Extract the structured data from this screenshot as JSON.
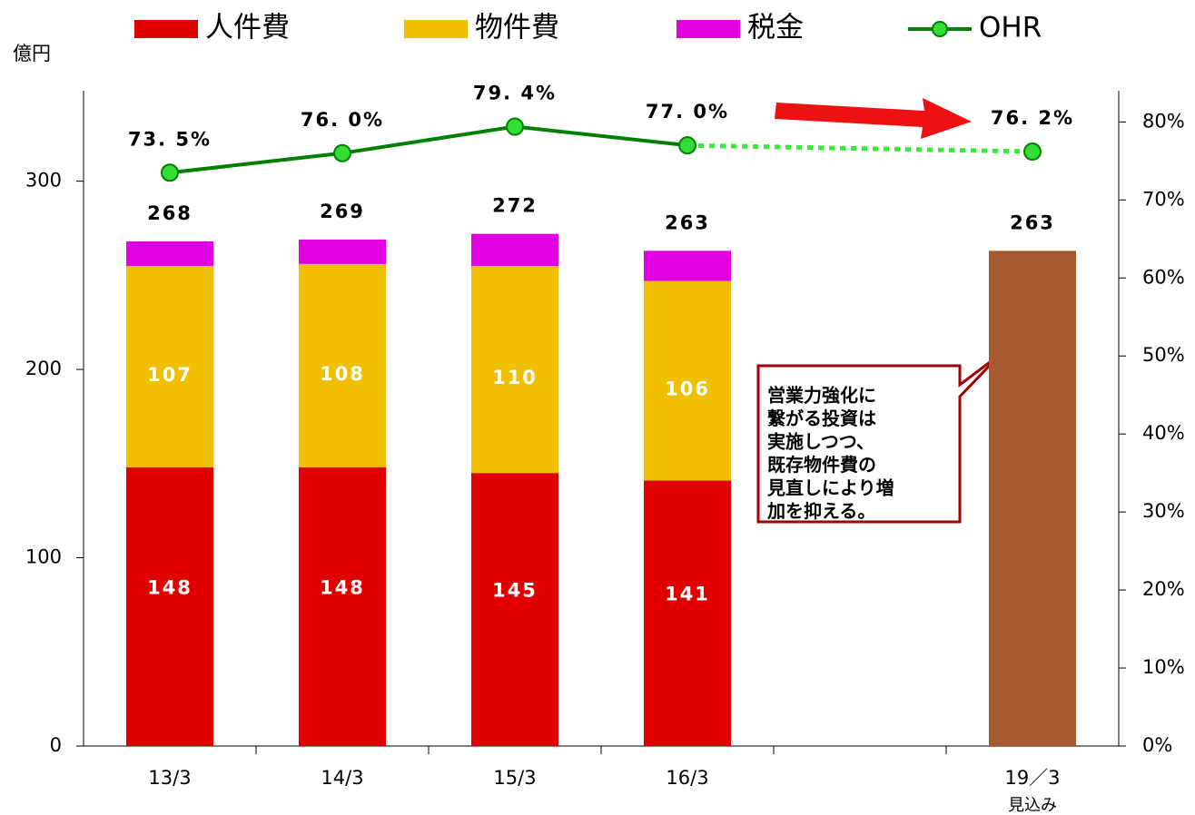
{
  "chart_data": {
    "type": "bar",
    "stacked": true,
    "y_label": "億円",
    "categories": [
      "13/3",
      "14/3",
      "15/3",
      "16/3",
      null,
      "19／3"
    ],
    "forecast_note": "見込み",
    "series": [
      {
        "name": "人件費",
        "color": "#e00000",
        "show_labels": true,
        "values": [
          148,
          148,
          145,
          141,
          null,
          null
        ]
      },
      {
        "name": "物件費",
        "color": "#f0c000",
        "show_labels": true,
        "values": [
          107,
          108,
          110,
          106,
          null,
          null
        ]
      },
      {
        "name": "税金",
        "color": "#e000e0",
        "show_labels": false,
        "values": [
          13,
          13,
          17,
          16,
          null,
          null
        ]
      },
      {
        "color": "#a65a32",
        "show_labels": false,
        "values": [
          null,
          null,
          null,
          null,
          null,
          263
        ]
      },
      {
        "name": "OHR",
        "type": "line",
        "axis": "y2",
        "color": "#008000",
        "marker_color": "#33dd33",
        "values": [
          73.5,
          76.0,
          79.4,
          77.0,
          null,
          76.2
        ],
        "value_labels": [
          "73. 5%",
          "76. 0%",
          "79. 4%",
          "77. 0%",
          null,
          "76. 2%"
        ]
      }
    ],
    "totals": [
      268,
      269,
      272,
      263,
      null,
      263
    ],
    "forecast_line": {
      "color": "#33ee33",
      "dash": "dotted"
    },
    "ylim": [
      0,
      348
    ],
    "yticks": [
      0,
      100,
      200,
      300
    ],
    "y2lim": [
      0,
      84
    ],
    "y2ticks": [
      {
        "value": 0,
        "label": "0%"
      },
      {
        "value": 10,
        "label": "10%"
      },
      {
        "value": 20,
        "label": "20%"
      },
      {
        "value": 30,
        "label": "30%"
      },
      {
        "value": 40,
        "label": "40%"
      },
      {
        "value": 50,
        "label": "50%"
      },
      {
        "value": 60,
        "label": "60%"
      },
      {
        "value": 70,
        "label": "70%"
      },
      {
        "value": 80,
        "label": "80%"
      }
    ],
    "callout": [
      "営業力強化に",
      "繋がる投資は",
      "実施しつつ、",
      "既存物件費の",
      "見直しにより増",
      "加を抑える。"
    ]
  }
}
